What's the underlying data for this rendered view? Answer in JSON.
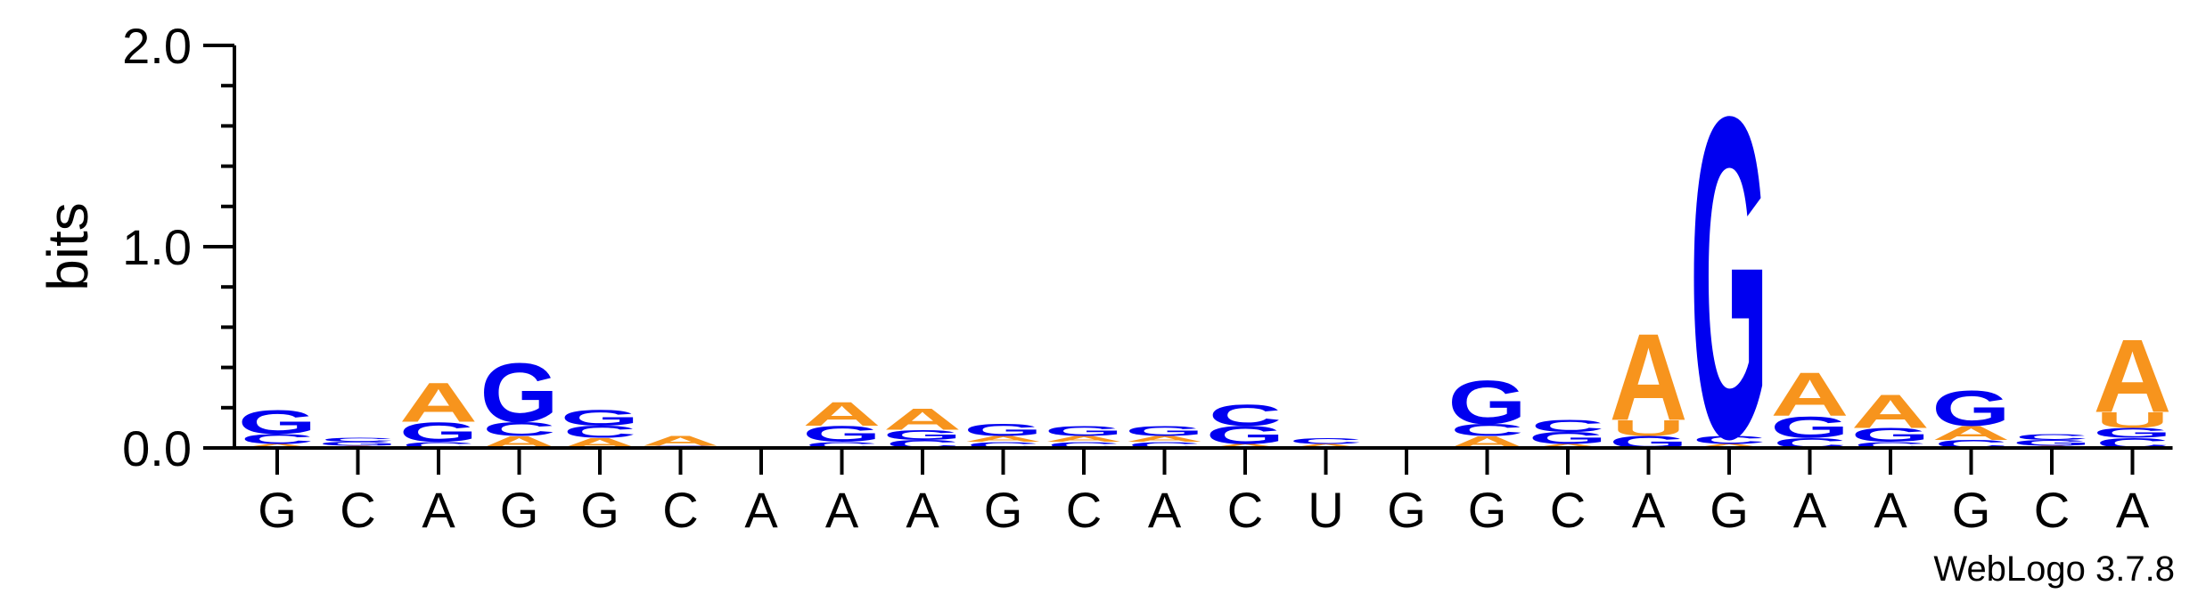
{
  "chart_data": {
    "type": "sequence-logo",
    "ylabel": "bits",
    "ylim": [
      0,
      2.0
    ],
    "yticks": [
      "0.0",
      "1.0",
      "2.0"
    ],
    "xtick_labels": [
      "G",
      "C",
      "A",
      "G",
      "G",
      "C",
      "A",
      "A",
      "A",
      "G",
      "C",
      "A",
      "C",
      "U",
      "G",
      "G",
      "C",
      "A",
      "G",
      "A",
      "A",
      "G",
      "C",
      "A"
    ],
    "credit": "WebLogo 3.7.8",
    "colors": {
      "A": "#f7941d",
      "G": "#0000f0",
      "C": "#0000f0",
      "U": "#f7941d"
    },
    "positions": [
      {
        "letters": [
          {
            "b": "A",
            "h": 0.02
          },
          {
            "b": "C",
            "h": 0.05
          },
          {
            "b": "G",
            "h": 0.12
          }
        ]
      },
      {
        "letters": [
          {
            "b": "A",
            "h": 0.01
          },
          {
            "b": "G",
            "h": 0.02
          },
          {
            "b": "C",
            "h": 0.02
          }
        ]
      },
      {
        "letters": [
          {
            "b": "C",
            "h": 0.03
          },
          {
            "b": "G",
            "h": 0.1
          },
          {
            "b": "A",
            "h": 0.2
          }
        ]
      },
      {
        "letters": [
          {
            "b": "A",
            "h": 0.06
          },
          {
            "b": "C",
            "h": 0.07
          },
          {
            "b": "G",
            "h": 0.3
          }
        ]
      },
      {
        "letters": [
          {
            "b": "A",
            "h": 0.05
          },
          {
            "b": "C",
            "h": 0.06
          },
          {
            "b": "G",
            "h": 0.08
          }
        ]
      },
      {
        "letters": [
          {
            "b": "C",
            "h": 0.01
          },
          {
            "b": "A",
            "h": 0.05
          }
        ]
      },
      {
        "letters": [
          {
            "b": "A",
            "h": 0.005
          }
        ]
      },
      {
        "letters": [
          {
            "b": "C",
            "h": 0.03
          },
          {
            "b": "G",
            "h": 0.08
          },
          {
            "b": "A",
            "h": 0.12
          }
        ]
      },
      {
        "letters": [
          {
            "b": "C",
            "h": 0.04
          },
          {
            "b": "G",
            "h": 0.05
          },
          {
            "b": "A",
            "h": 0.11
          }
        ]
      },
      {
        "letters": [
          {
            "b": "C",
            "h": 0.03
          },
          {
            "b": "A",
            "h": 0.03
          },
          {
            "b": "G",
            "h": 0.06
          }
        ]
      },
      {
        "letters": [
          {
            "b": "C",
            "h": 0.03
          },
          {
            "b": "A",
            "h": 0.03
          },
          {
            "b": "G",
            "h": 0.05
          }
        ]
      },
      {
        "letters": [
          {
            "b": "C",
            "h": 0.03
          },
          {
            "b": "A",
            "h": 0.03
          },
          {
            "b": "G",
            "h": 0.05
          }
        ]
      },
      {
        "letters": [
          {
            "b": "A",
            "h": 0.02
          },
          {
            "b": "G",
            "h": 0.09
          },
          {
            "b": "C",
            "h": 0.11
          }
        ]
      },
      {
        "letters": [
          {
            "b": "A",
            "h": 0.02
          },
          {
            "b": "C",
            "h": 0.03
          }
        ]
      },
      {
        "letters": [
          {
            "b": "A",
            "h": 0.005
          }
        ]
      },
      {
        "letters": [
          {
            "b": "A",
            "h": 0.06
          },
          {
            "b": "C",
            "h": 0.06
          },
          {
            "b": "G",
            "h": 0.22
          }
        ]
      },
      {
        "letters": [
          {
            "b": "A",
            "h": 0.02
          },
          {
            "b": "G",
            "h": 0.06
          },
          {
            "b": "C",
            "h": 0.06
          }
        ]
      },
      {
        "letters": [
          {
            "b": "G",
            "h": 0.06
          },
          {
            "b": "U",
            "h": 0.08
          },
          {
            "b": "A",
            "h": 0.44
          }
        ]
      },
      {
        "letters": [
          {
            "b": "A",
            "h": 0.02
          },
          {
            "b": "C",
            "h": 0.04
          },
          {
            "b": "G",
            "h": 1.63
          }
        ]
      },
      {
        "letters": [
          {
            "b": "C",
            "h": 0.05
          },
          {
            "b": "G",
            "h": 0.11
          },
          {
            "b": "A",
            "h": 0.22
          }
        ]
      },
      {
        "letters": [
          {
            "b": "C",
            "h": 0.03
          },
          {
            "b": "G",
            "h": 0.07
          },
          {
            "b": "A",
            "h": 0.17
          }
        ]
      },
      {
        "letters": [
          {
            "b": "C",
            "h": 0.04
          },
          {
            "b": "A",
            "h": 0.07
          },
          {
            "b": "G",
            "h": 0.18
          }
        ]
      },
      {
        "letters": [
          {
            "b": "A",
            "h": 0.01
          },
          {
            "b": "G",
            "h": 0.03
          },
          {
            "b": "C",
            "h": 0.03
          }
        ]
      },
      {
        "letters": [
          {
            "b": "C",
            "h": 0.05
          },
          {
            "b": "G",
            "h": 0.05
          },
          {
            "b": "U",
            "h": 0.08
          },
          {
            "b": "A",
            "h": 0.37
          }
        ]
      }
    ]
  }
}
